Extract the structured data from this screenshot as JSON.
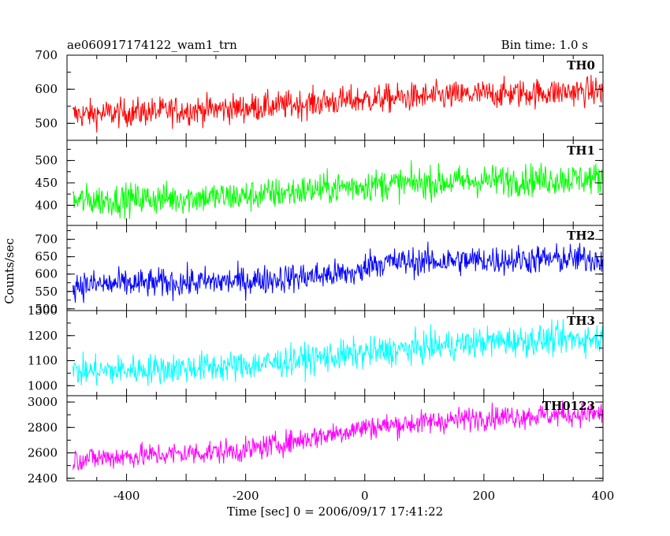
{
  "header": {
    "title": "ae060917174122_wam1_trn",
    "bin_time": "Bin time: 1.0 s"
  },
  "chart_data": {
    "type": "line",
    "xlabel": "Time [sec] 0 = 2006/09/17 17:41:22",
    "ylabel": "Counts/sec",
    "xlim": [
      -500,
      400
    ],
    "xticks": [
      -400,
      -200,
      0,
      200,
      400
    ],
    "panels": [
      {
        "name": "TH0",
        "color": "#ff0000",
        "ylim": [
          450,
          700
        ],
        "yticks": [
          500,
          600,
          700
        ],
        "trend": {
          "x": [
            -490,
            -200,
            0,
            200,
            400
          ],
          "y": [
            525,
            545,
            570,
            585,
            595
          ]
        },
        "noise": 38
      },
      {
        "name": "TH1",
        "color": "#00ff00",
        "ylim": [
          355,
          545
        ],
        "yticks": [
          400,
          450,
          500
        ],
        "trend": {
          "x": [
            -490,
            -200,
            0,
            200,
            400
          ],
          "y": [
            410,
            420,
            445,
            455,
            460
          ]
        },
        "noise": 32
      },
      {
        "name": "TH2",
        "color": "#0000ff",
        "ylim": [
          495,
          740
        ],
        "yticks": [
          500,
          550,
          600,
          650,
          700
        ],
        "trend": {
          "x": [
            -490,
            -200,
            -1,
            1,
            200,
            400
          ],
          "y": [
            568,
            580,
            605,
            632,
            640,
            645
          ]
        },
        "noise": 38
      },
      {
        "name": "TH3",
        "color": "#00ffff",
        "ylim": [
          960,
          1300
        ],
        "yticks": [
          1000,
          1100,
          1200,
          1300
        ],
        "trend": {
          "x": [
            -490,
            -200,
            0,
            200,
            400
          ],
          "y": [
            1055,
            1080,
            1130,
            1175,
            1190
          ]
        },
        "noise": 55
      },
      {
        "name": "TH0123",
        "color": "#ff00ff",
        "ylim": [
          2380,
          3050
        ],
        "yticks": [
          2400,
          2600,
          2800,
          3000
        ],
        "trend": {
          "x": [
            -490,
            -200,
            0,
            200,
            400
          ],
          "y": [
            2550,
            2620,
            2800,
            2880,
            2910
          ]
        },
        "noise": 85
      }
    ]
  }
}
